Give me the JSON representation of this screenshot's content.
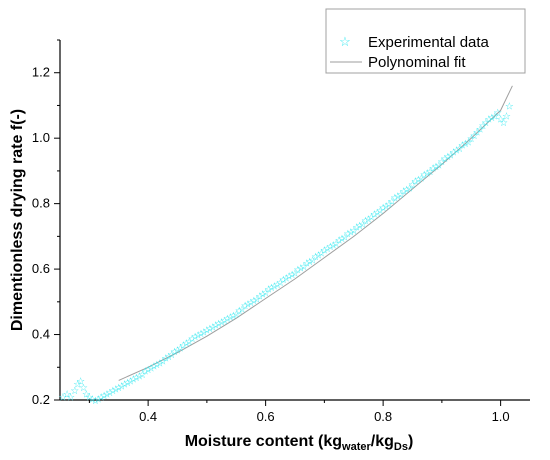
{
  "chart_data": {
    "type": "scatter",
    "title": "",
    "xlabel": {
      "main": "Moisture content (kg",
      "sub1": "water",
      "mid": "/kg",
      "sub2": "Ds",
      "end": ")"
    },
    "ylabel": "Dimentionless drying rate f(-)",
    "xlim": [
      0.25,
      1.05
    ],
    "ylim": [
      0.2,
      1.3
    ],
    "x_ticks": [
      "0.4",
      "0.6",
      "0.8",
      "1.0"
    ],
    "y_ticks": [
      "0.2",
      "0.4",
      "0.6",
      "0.8",
      "1.0",
      "1.2"
    ],
    "grid": false,
    "legend_position": "top-right",
    "series": [
      {
        "name": "Experimental data",
        "kind": "scatter",
        "marker": "star",
        "color": "#33e8f0",
        "x": [
          0.255,
          0.262,
          0.268,
          0.275,
          0.28,
          0.285,
          0.29,
          0.295,
          0.3,
          0.305,
          0.31,
          0.315,
          0.32,
          0.325,
          0.33,
          0.335,
          0.34,
          0.345,
          0.35,
          0.355,
          0.36,
          0.365,
          0.37,
          0.375,
          0.38,
          0.385,
          0.39,
          0.395,
          0.4,
          0.405,
          0.41,
          0.415,
          0.42,
          0.425,
          0.43,
          0.435,
          0.44,
          0.445,
          0.45,
          0.455,
          0.46,
          0.465,
          0.47,
          0.475,
          0.48,
          0.485,
          0.49,
          0.495,
          0.5,
          0.505,
          0.51,
          0.515,
          0.52,
          0.525,
          0.53,
          0.535,
          0.54,
          0.545,
          0.55,
          0.555,
          0.56,
          0.565,
          0.57,
          0.575,
          0.58,
          0.585,
          0.59,
          0.595,
          0.6,
          0.605,
          0.61,
          0.615,
          0.62,
          0.625,
          0.63,
          0.635,
          0.64,
          0.645,
          0.65,
          0.655,
          0.66,
          0.665,
          0.67,
          0.675,
          0.68,
          0.685,
          0.69,
          0.695,
          0.7,
          0.705,
          0.71,
          0.715,
          0.72,
          0.725,
          0.73,
          0.735,
          0.74,
          0.745,
          0.75,
          0.755,
          0.76,
          0.765,
          0.77,
          0.775,
          0.78,
          0.785,
          0.79,
          0.795,
          0.8,
          0.805,
          0.81,
          0.815,
          0.82,
          0.825,
          0.83,
          0.835,
          0.84,
          0.845,
          0.85,
          0.855,
          0.86,
          0.865,
          0.87,
          0.875,
          0.88,
          0.885,
          0.89,
          0.895,
          0.9,
          0.905,
          0.91,
          0.915,
          0.92,
          0.925,
          0.93,
          0.935,
          0.94,
          0.945,
          0.95,
          0.955,
          0.96,
          0.965,
          0.97,
          0.975,
          0.98,
          0.985,
          0.99,
          0.995,
          1.0,
          1.005,
          1.01,
          1.015
        ],
        "y": [
          0.21,
          0.22,
          0.21,
          0.23,
          0.25,
          0.26,
          0.24,
          0.22,
          0.21,
          0.205,
          0.2,
          0.205,
          0.21,
          0.215,
          0.22,
          0.225,
          0.23,
          0.235,
          0.24,
          0.245,
          0.25,
          0.255,
          0.26,
          0.265,
          0.27,
          0.275,
          0.28,
          0.29,
          0.295,
          0.3,
          0.305,
          0.31,
          0.315,
          0.32,
          0.33,
          0.335,
          0.34,
          0.35,
          0.355,
          0.36,
          0.37,
          0.375,
          0.38,
          0.39,
          0.395,
          0.4,
          0.405,
          0.41,
          0.415,
          0.42,
          0.425,
          0.43,
          0.435,
          0.44,
          0.445,
          0.45,
          0.455,
          0.46,
          0.465,
          0.475,
          0.48,
          0.49,
          0.495,
          0.5,
          0.505,
          0.51,
          0.52,
          0.525,
          0.53,
          0.54,
          0.545,
          0.55,
          0.555,
          0.56,
          0.57,
          0.575,
          0.58,
          0.585,
          0.59,
          0.6,
          0.605,
          0.61,
          0.62,
          0.625,
          0.63,
          0.64,
          0.645,
          0.65,
          0.66,
          0.665,
          0.67,
          0.675,
          0.68,
          0.69,
          0.695,
          0.7,
          0.71,
          0.715,
          0.72,
          0.73,
          0.735,
          0.74,
          0.75,
          0.755,
          0.76,
          0.77,
          0.775,
          0.78,
          0.79,
          0.795,
          0.8,
          0.81,
          0.82,
          0.825,
          0.83,
          0.84,
          0.845,
          0.85,
          0.86,
          0.87,
          0.875,
          0.88,
          0.89,
          0.895,
          0.9,
          0.91,
          0.915,
          0.92,
          0.93,
          0.94,
          0.945,
          0.95,
          0.96,
          0.965,
          0.97,
          0.98,
          0.985,
          0.99,
          1.0,
          1.01,
          1.02,
          1.03,
          1.04,
          1.05,
          1.06,
          1.065,
          1.07,
          1.08,
          1.06,
          1.05,
          1.07,
          1.1
        ]
      },
      {
        "name": "Polynominal fit",
        "kind": "line",
        "color": "#9e9e9e",
        "x": [
          0.35,
          0.4,
          0.45,
          0.5,
          0.55,
          0.6,
          0.65,
          0.7,
          0.75,
          0.8,
          0.85,
          0.9,
          0.95,
          1.0,
          1.02
        ],
        "y": [
          0.26,
          0.3,
          0.345,
          0.395,
          0.45,
          0.51,
          0.57,
          0.635,
          0.7,
          0.77,
          0.845,
          0.92,
          1.0,
          1.085,
          1.16
        ]
      }
    ]
  }
}
